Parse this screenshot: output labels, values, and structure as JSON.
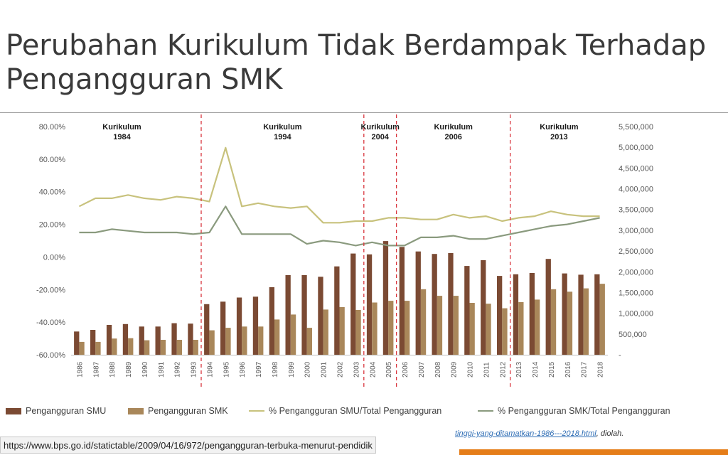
{
  "slide": {
    "title": "Perubahan Kurikulum Tidak Berdampak Terhadap Pengangguran SMK",
    "source_link": "tinggi-yang-ditamatkan-1986---2018.html",
    "source_suffix": ", diolah.",
    "status_url": "https://www.bps.go.id/statictable/2009/04/16/972/pengangguran-terbuka-menurut-pendidik"
  },
  "chart_data": {
    "type": "bar",
    "categories": [
      "1986",
      "1987",
      "1988",
      "1989",
      "1990",
      "1991",
      "1992",
      "1993",
      "1994",
      "1995",
      "1996",
      "1997",
      "1998",
      "1999",
      "2000",
      "2001",
      "2002",
      "2003",
      "2004",
      "2005",
      "2006",
      "2007",
      "2008",
      "2009",
      "2010",
      "2011",
      "2012",
      "2013",
      "2014",
      "2015",
      "2016",
      "2017",
      "2018"
    ],
    "y_left": {
      "ticks": [
        "80.00%",
        "60.00%",
        "40.00%",
        "20.00%",
        "0.00%",
        "-20.00%",
        "-40.00%",
        "-60.00%"
      ],
      "range": [
        -60,
        80
      ]
    },
    "y_right": {
      "ticks": [
        "5,500,000",
        "5,000,000",
        "4,500,000",
        "4,000,000",
        "3,500,000",
        "3,000,000",
        "2,500,000",
        "2,000,000",
        "1,500,000",
        "1,000,000",
        "500,000",
        "-"
      ],
      "range": [
        0,
        5500000
      ]
    },
    "series": [
      {
        "name": "Pengangguran SMU",
        "axis": "right",
        "kind": "bar",
        "color": "#7b4a33",
        "values": [
          560000,
          600000,
          720000,
          740000,
          680000,
          680000,
          760000,
          750000,
          1220000,
          1280000,
          1380000,
          1400000,
          1630000,
          1920000,
          1920000,
          1880000,
          2130000,
          2440000,
          2420000,
          2740000,
          2600000,
          2490000,
          2430000,
          2450000,
          2140000,
          2280000,
          1900000,
          1940000,
          1970000,
          2310000,
          1960000,
          1930000,
          1940000
        ]
      },
      {
        "name": "Pengangguran SMK",
        "axis": "right",
        "kind": "bar",
        "color": "#a9875a",
        "values": [
          310000,
          310000,
          390000,
          400000,
          350000,
          360000,
          360000,
          360000,
          590000,
          650000,
          680000,
          680000,
          850000,
          970000,
          650000,
          1090000,
          1150000,
          1080000,
          1260000,
          1300000,
          1300000,
          1580000,
          1420000,
          1420000,
          1250000,
          1230000,
          1120000,
          1270000,
          1330000,
          1580000,
          1520000,
          1600000,
          1710000
        ]
      },
      {
        "name": "% Pengangguran SMU/Total Pengangguran",
        "axis": "left",
        "kind": "line",
        "color": "#c8c27d",
        "values": [
          31,
          36,
          36,
          38,
          36,
          35,
          37,
          36,
          34,
          67,
          31,
          33,
          31,
          30,
          31,
          21,
          21,
          22,
          22,
          24,
          24,
          23,
          23,
          26,
          24,
          25,
          22,
          24,
          25,
          28,
          26,
          25,
          25
        ]
      },
      {
        "name": "% Pengangguran SMK/Total Pengangguran",
        "axis": "left",
        "kind": "line",
        "color": "#8a9a7e",
        "values": [
          15,
          15,
          17,
          16,
          15,
          15,
          15,
          14,
          15,
          31,
          14,
          14,
          14,
          14,
          8,
          10,
          9,
          7,
          9,
          7,
          7,
          12,
          12,
          13,
          11,
          11,
          13,
          15,
          17,
          19,
          20,
          22,
          24
        ]
      }
    ],
    "curriculum_markers": [
      {
        "label": [
          "Kurikulum",
          "1984"
        ],
        "after_index": -1
      },
      {
        "label": [
          "Kurikulum",
          "1994"
        ],
        "after_index": 7
      },
      {
        "label": [
          "Kurikulum",
          "2004"
        ],
        "after_index": 17
      },
      {
        "label": [
          "Kurikulum",
          "2006"
        ],
        "after_index": 19
      },
      {
        "label": [
          "Kurikulum",
          "2013"
        ],
        "after_index": 26
      }
    ],
    "legend_position": "bottom",
    "grid": false
  }
}
